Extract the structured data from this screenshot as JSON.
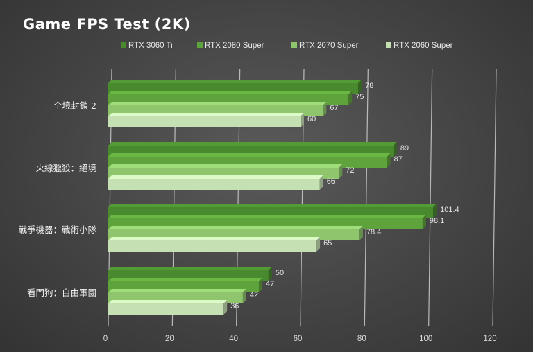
{
  "chart_data": {
    "type": "bar",
    "orientation": "horizontal",
    "title": "Game FPS Test (2K)",
    "categories": [
      "全境封鎖 2",
      "火線獵殺：絕境",
      "戰爭機器：戰術小隊",
      "看門狗：自由軍團"
    ],
    "series": [
      {
        "name": "RTX 3060 Ti",
        "values": [
          78,
          89,
          101.4,
          50
        ],
        "color": "#4a8a2e"
      },
      {
        "name": "RTX 2080 Super",
        "values": [
          75,
          87,
          98.1,
          47
        ],
        "color": "#5fa33c"
      },
      {
        "name": "RTX 2070 Super",
        "values": [
          67,
          72,
          78.4,
          42
        ],
        "color": "#8ec56d"
      },
      {
        "name": "RTX 2060 Super",
        "values": [
          60,
          66,
          65,
          36
        ],
        "color": "#c5e0b2"
      }
    ],
    "data_labels": [
      [
        "78",
        "89",
        "101.4",
        "50"
      ],
      [
        "75",
        "87",
        "98.1",
        "47"
      ],
      [
        "67",
        "72",
        "78.4",
        "42"
      ],
      [
        "60",
        "66",
        "65",
        "36"
      ]
    ],
    "xlim": [
      0,
      120
    ],
    "x_ticks": [
      "0",
      "20",
      "40",
      "60",
      "80",
      "100",
      "120"
    ],
    "grid": true,
    "legend_position": "top",
    "background": "#444444"
  }
}
